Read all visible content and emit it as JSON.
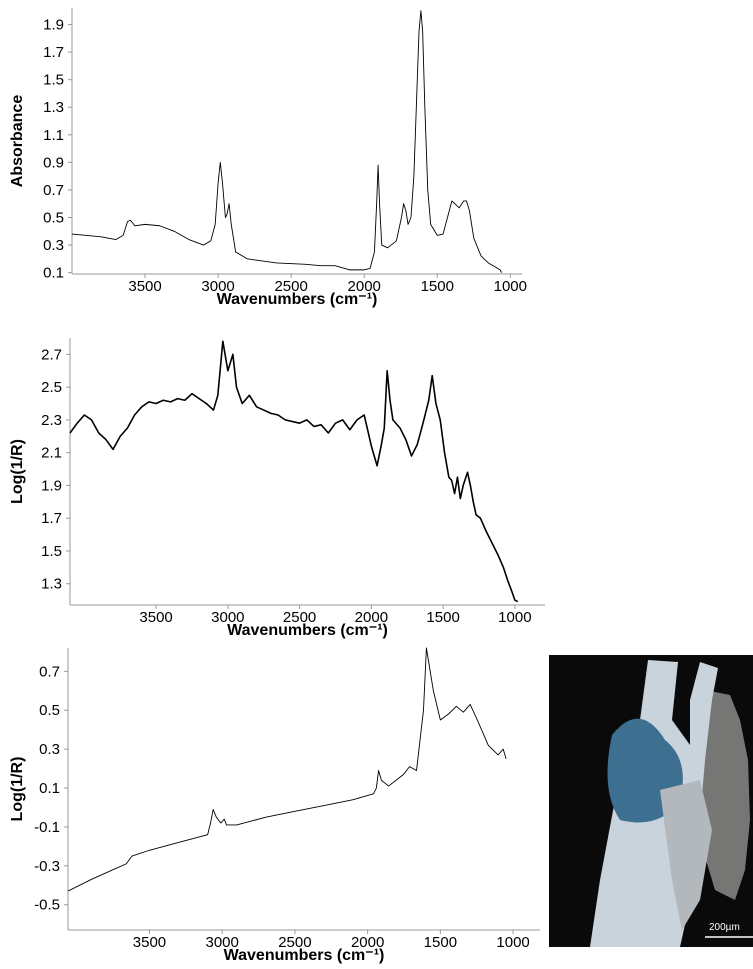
{
  "chart_data": [
    {
      "type": "line",
      "y_label": "Absorbance",
      "x_label": "Wavenumbers (cm⁻¹)",
      "color": "#000000",
      "x": [
        4000,
        3800,
        3700,
        3650,
        3620,
        3600,
        3570,
        3500,
        3400,
        3300,
        3200,
        3100,
        3050,
        3020,
        3000,
        2985,
        2970,
        2950,
        2940,
        2925,
        2910,
        2880,
        2800,
        2600,
        2400,
        2300,
        2200,
        2100,
        2000,
        1960,
        1930,
        1915,
        1905,
        1895,
        1880,
        1840,
        1780,
        1745,
        1730,
        1715,
        1700,
        1680,
        1660,
        1640,
        1625,
        1612,
        1600,
        1585,
        1565,
        1545,
        1500,
        1460,
        1430,
        1400,
        1380,
        1350,
        1320,
        1300,
        1280,
        1250,
        1200,
        1150,
        1100,
        1070,
        1060
      ],
      "values": [
        0.38,
        0.36,
        0.34,
        0.37,
        0.47,
        0.48,
        0.44,
        0.45,
        0.44,
        0.4,
        0.34,
        0.3,
        0.33,
        0.45,
        0.75,
        0.9,
        0.75,
        0.5,
        0.52,
        0.6,
        0.45,
        0.25,
        0.2,
        0.17,
        0.16,
        0.15,
        0.15,
        0.12,
        0.12,
        0.13,
        0.25,
        0.6,
        0.88,
        0.6,
        0.3,
        0.28,
        0.33,
        0.5,
        0.6,
        0.55,
        0.45,
        0.5,
        0.8,
        1.4,
        1.85,
        2.0,
        1.85,
        1.3,
        0.7,
        0.45,
        0.37,
        0.38,
        0.5,
        0.62,
        0.6,
        0.57,
        0.62,
        0.62,
        0.55,
        0.35,
        0.22,
        0.17,
        0.14,
        0.12,
        0.1
      ],
      "xlim": [
        4000,
        920
      ],
      "ylim": [
        0.09,
        2.02
      ],
      "xticks": [
        3500,
        3000,
        2500,
        2000,
        1500,
        1000
      ],
      "yticks": [
        0.1,
        0.3,
        0.5,
        0.7,
        0.9,
        1.1,
        1.3,
        1.5,
        1.7,
        1.9
      ]
    },
    {
      "type": "line",
      "y_label": "Log(1/R)",
      "x_label": "Wavenumbers (cm⁻¹)",
      "color": "#000000",
      "x": [
        4100,
        4050,
        4000,
        3950,
        3900,
        3850,
        3800,
        3750,
        3700,
        3650,
        3600,
        3550,
        3500,
        3450,
        3400,
        3350,
        3300,
        3250,
        3200,
        3150,
        3100,
        3070,
        3035,
        3000,
        2965,
        2940,
        2900,
        2850,
        2800,
        2750,
        2700,
        2650,
        2600,
        2550,
        2500,
        2450,
        2400,
        2350,
        2300,
        2250,
        2200,
        2150,
        2100,
        2050,
        2000,
        1960,
        1930,
        1910,
        1890,
        1870,
        1850,
        1800,
        1760,
        1720,
        1680,
        1640,
        1600,
        1576,
        1550,
        1520,
        1490,
        1460,
        1440,
        1420,
        1400,
        1380,
        1360,
        1330,
        1310,
        1290,
        1270,
        1240,
        1200,
        1160,
        1120,
        1080,
        1050,
        1020,
        1000,
        980
      ],
      "values": [
        2.22,
        2.28,
        2.33,
        2.3,
        2.22,
        2.18,
        2.12,
        2.2,
        2.25,
        2.33,
        2.38,
        2.41,
        2.4,
        2.42,
        2.41,
        2.43,
        2.42,
        2.46,
        2.43,
        2.4,
        2.36,
        2.45,
        2.78,
        2.6,
        2.7,
        2.5,
        2.4,
        2.45,
        2.38,
        2.36,
        2.34,
        2.33,
        2.3,
        2.29,
        2.28,
        2.3,
        2.26,
        2.27,
        2.22,
        2.28,
        2.3,
        2.24,
        2.3,
        2.33,
        2.14,
        2.02,
        2.15,
        2.25,
        2.6,
        2.42,
        2.3,
        2.25,
        2.18,
        2.08,
        2.15,
        2.28,
        2.42,
        2.57,
        2.4,
        2.3,
        2.1,
        1.95,
        1.93,
        1.85,
        1.95,
        1.82,
        1.9,
        1.98,
        1.9,
        1.8,
        1.72,
        1.7,
        1.62,
        1.55,
        1.48,
        1.4,
        1.32,
        1.25,
        1.2,
        1.19
      ],
      "xlim": [
        4100,
        790
      ],
      "ylim": [
        1.17,
        2.8
      ],
      "xticks": [
        3500,
        3000,
        2500,
        2000,
        1500,
        1000
      ],
      "yticks": [
        1.3,
        1.5,
        1.7,
        1.9,
        2.1,
        2.3,
        2.5,
        2.7
      ]
    },
    {
      "type": "line",
      "y_label": "Log(1/R)",
      "x_label": "Wavenumbers (cm⁻¹)",
      "color": "#000000",
      "x": [
        4060,
        3900,
        3750,
        3660,
        3640,
        3620,
        3500,
        3300,
        3100,
        3080,
        3062,
        3040,
        3010,
        2986,
        2970,
        2900,
        2700,
        2500,
        2300,
        2100,
        1960,
        1940,
        1925,
        1905,
        1856,
        1753,
        1712,
        1664,
        1616,
        1596,
        1548,
        1500,
        1445,
        1390,
        1342,
        1295,
        1240,
        1171,
        1103,
        1068,
        1048
      ],
      "values": [
        -0.43,
        -0.37,
        -0.32,
        -0.29,
        -0.27,
        -0.25,
        -0.22,
        -0.18,
        -0.14,
        -0.08,
        -0.01,
        -0.05,
        -0.08,
        -0.06,
        -0.09,
        -0.09,
        -0.05,
        -0.02,
        0.01,
        0.04,
        0.07,
        0.1,
        0.19,
        0.14,
        0.11,
        0.17,
        0.21,
        0.19,
        0.5,
        0.82,
        0.6,
        0.45,
        0.48,
        0.52,
        0.49,
        0.53,
        0.44,
        0.32,
        0.27,
        0.3,
        0.25
      ],
      "xlim": [
        4060,
        815
      ],
      "ylim": [
        -0.63,
        0.82
      ],
      "xticks": [
        3500,
        3000,
        2500,
        2000,
        1500,
        1000
      ],
      "yticks": [
        -0.5,
        -0.3,
        -0.1,
        0.1,
        0.3,
        0.5,
        0.7
      ]
    }
  ],
  "image": {
    "scale_bar": "200µm"
  }
}
